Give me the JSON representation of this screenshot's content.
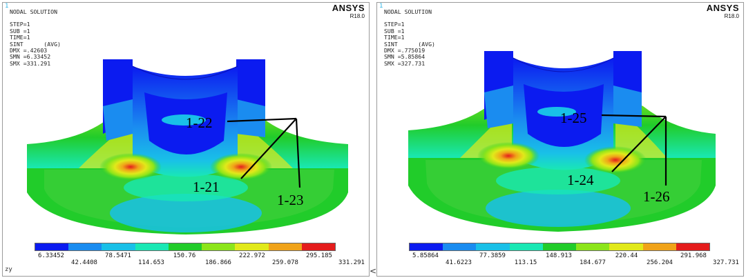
{
  "colormap": [
    "#0b1bf0",
    "#1a8cf0",
    "#19c0e8",
    "#19e8b4",
    "#21cc2a",
    "#8ce51a",
    "#e1e91a",
    "#f0a319",
    "#e41c1c"
  ],
  "left": {
    "window_number": "1",
    "title": "NODAL SOLUTION",
    "step": "STEP=1",
    "sub": "SUB =1",
    "time": "TIME=1",
    "result": "SINT      (AVG)",
    "dmx": "DMX =.42603",
    "smn": "SMN =6.33452",
    "smx": "SMX =331.291",
    "brand": "ANSYS",
    "version": "R18.0",
    "callouts": [
      "1-22",
      "1-21",
      "1-23"
    ],
    "legend_top": [
      "6.33452",
      "78.5471",
      "150.76",
      "222.972",
      "295.185"
    ],
    "legend_bottom": [
      "42.4408",
      "114.653",
      "186.866",
      "259.078",
      "331.291"
    ],
    "axis_label": "zy"
  },
  "right": {
    "window_number": "1",
    "title": "NODAL SOLUTION",
    "step": "STEP=1",
    "sub": "SUB =1",
    "time": "TIME=1",
    "result": "SINT      (AVG)",
    "dmx": "DMX =.775019",
    "smn": "SMN =5.85864",
    "smx": "SMX =327.731",
    "brand": "ANSYS",
    "version": "R18.0",
    "callouts": [
      "1-25",
      "1-24",
      "1-26"
    ],
    "legend_top": [
      "5.85864",
      "77.3859",
      "148.913",
      "220.44",
      "291.968"
    ],
    "legend_bottom": [
      "41.6223",
      "113.15",
      "184.677",
      "256.204",
      "327.731"
    ],
    "axis_label": ""
  },
  "nav_arrow": "<"
}
